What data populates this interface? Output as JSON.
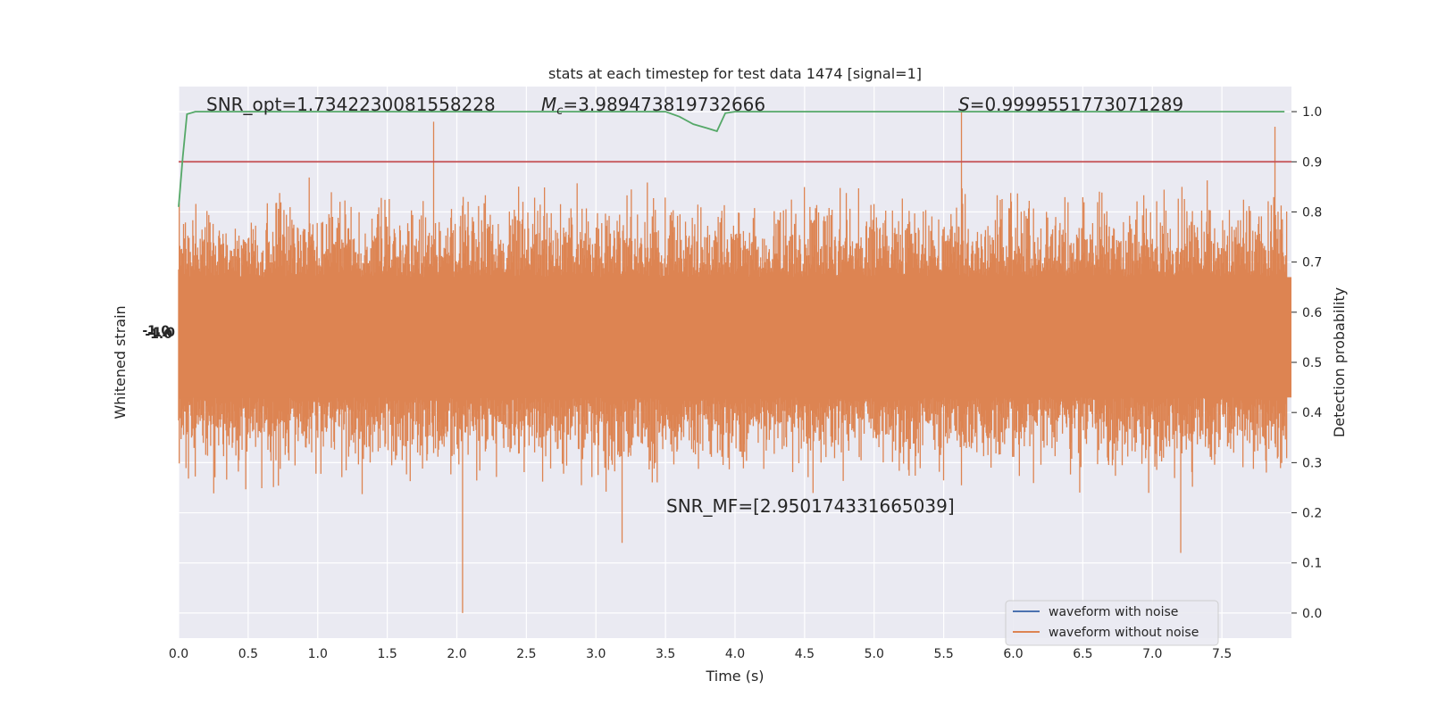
{
  "chart_data": {
    "type": "line",
    "title": "stats at each timestep for test data 1474 [signal=1]",
    "xlabel": "Time (s)",
    "ylabel_left": "Whitened strain",
    "ylabel_right": "Detection probability",
    "xlim": [
      0.0,
      8.0
    ],
    "ylim_right": [
      -0.05,
      1.05
    ],
    "x_ticks": [
      "0.0",
      "0.5",
      "1.0",
      "1.5",
      "2.0",
      "2.5",
      "3.0",
      "3.5",
      "4.0",
      "4.5",
      "5.0",
      "5.5",
      "6.0",
      "6.5",
      "7.0",
      "7.5"
    ],
    "y_right_ticks": [
      "0.0",
      "0.1",
      "0.2",
      "0.3",
      "0.4",
      "0.5",
      "0.6",
      "0.7",
      "0.8",
      "0.9",
      "1.0"
    ],
    "left_tick_labels_overlapping": "-1.0",
    "grid": true,
    "legend_position": "lower-right",
    "annotations": {
      "snr_opt": "SNR_opt=1.7342230081558228",
      "mc_symbol": "M",
      "mc_sub": "c",
      "mc_value": "=3.989473819732666",
      "s_symbol": "S",
      "s_value": "=0.9999551773071289",
      "snr_mf": "SNR_MF=[2.950174331665039]"
    },
    "threshold": 0.9,
    "series": [
      {
        "name": "waveform with noise",
        "color": "#4c72b0"
      },
      {
        "name": "waveform without noise",
        "color": "#dd8452"
      }
    ],
    "noise_band": {
      "center": 0.55,
      "dense_half_width": 0.12,
      "peak_examples": [
        {
          "x": 1.84,
          "y": 0.98
        },
        {
          "x": 2.05,
          "y": 0.0
        },
        {
          "x": 3.2,
          "y": 0.14
        },
        {
          "x": 5.65,
          "y": 1.0
        },
        {
          "x": 7.23,
          "y": 0.12
        },
        {
          "x": 7.91,
          "y": 0.97
        }
      ]
    },
    "probability_series": {
      "color": "#55a868",
      "x": [
        0.0,
        0.03,
        0.06,
        0.12,
        0.5,
        1.0,
        2.0,
        3.0,
        3.5,
        3.6,
        3.7,
        3.8,
        3.87,
        3.93,
        4.0,
        5.0,
        6.0,
        7.0,
        7.95
      ],
      "y": [
        0.81,
        0.91,
        0.995,
        1.0,
        1.0,
        1.0,
        1.0,
        1.0,
        1.0,
        0.99,
        0.975,
        0.967,
        0.961,
        0.997,
        1.0,
        1.0,
        1.0,
        1.0,
        1.0
      ]
    },
    "threshold_color": "#c44e52"
  }
}
